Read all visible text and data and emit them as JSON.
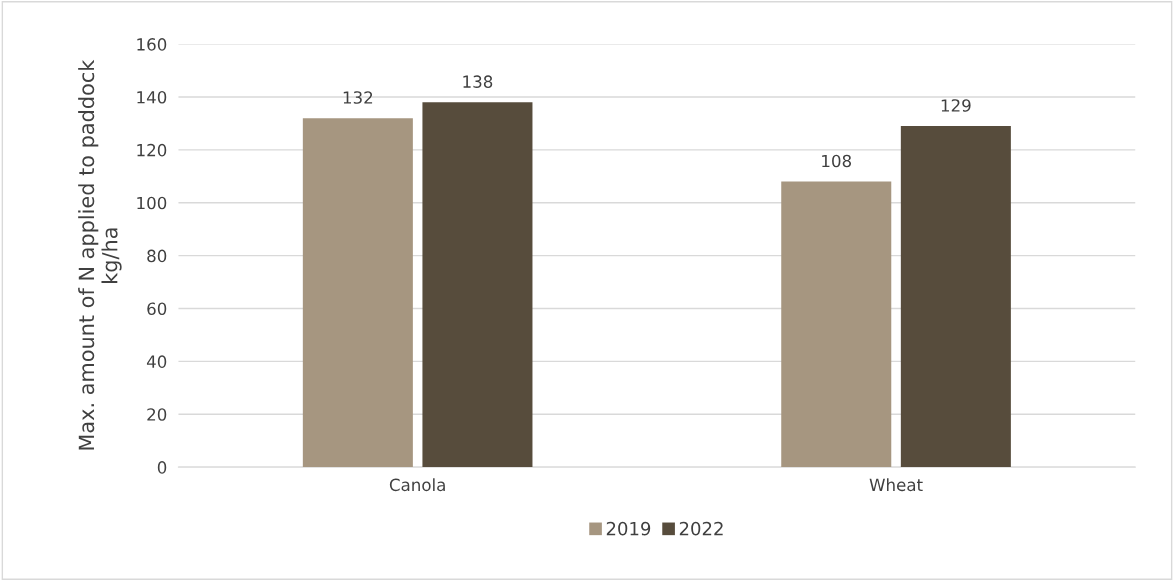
{
  "chart_data": {
    "type": "bar",
    "ylabel": "Max. amount of N applied to paddock\nkg/ha",
    "categories": [
      "Canola",
      "Wheat"
    ],
    "series": [
      {
        "name": "2019",
        "color": "#a69680",
        "values": [
          132,
          108
        ]
      },
      {
        "name": "2022",
        "color": "#574c3c",
        "values": [
          138,
          129
        ]
      }
    ],
    "ylim": [
      0,
      160
    ],
    "yticks": [
      0,
      20,
      40,
      60,
      80,
      100,
      120,
      140,
      160
    ],
    "grid": "y",
    "legend": "bottom",
    "data_labels": true
  }
}
